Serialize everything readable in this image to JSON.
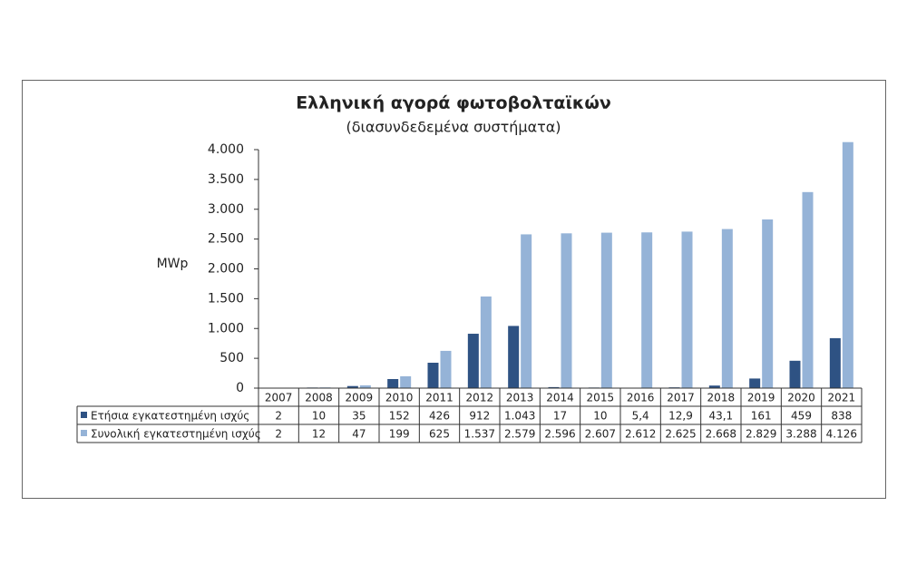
{
  "chart_data": {
    "type": "bar",
    "title": "Ελληνική αγορά φωτοβολταϊκών",
    "subtitle": "(διασυνδεδεμένα συστήματα)",
    "y_label": "MWp",
    "categories": [
      "2007",
      "2008",
      "2009",
      "2010",
      "2011",
      "2012",
      "2013",
      "2014",
      "2015",
      "2016",
      "2017",
      "2018",
      "2019",
      "2020",
      "2021"
    ],
    "series": [
      {
        "name": "Ετήσια εγκατεστημένη ισχύς",
        "color": "#2e5283",
        "values": [
          2,
          10,
          35,
          152,
          426,
          912,
          1043,
          17,
          10,
          5.4,
          12.9,
          43.1,
          161,
          459,
          838
        ],
        "value_labels": [
          "2",
          "10",
          "35",
          "152",
          "426",
          "912",
          "1.043",
          "17",
          "10",
          "5,4",
          "12,9",
          "43,1",
          "161",
          "459",
          "838"
        ]
      },
      {
        "name": "Συνολική εγκατεστημένη ισχύς",
        "color": "#95b3d7",
        "values": [
          2,
          12,
          47,
          199,
          625,
          1537,
          2579,
          2596,
          2607,
          2612,
          2625,
          2668,
          2829,
          3288,
          4126
        ],
        "value_labels": [
          "2",
          "12",
          "47",
          "199",
          "625",
          "1.537",
          "2.579",
          "2.596",
          "2.607",
          "2.612",
          "2.625",
          "2.668",
          "2.829",
          "3.288",
          "4.126"
        ]
      }
    ],
    "ylim": [
      0,
      4000
    ],
    "yticks": [
      0,
      500,
      {
        "value": 1000,
        "label": "1.000"
      },
      {
        "value": 1500,
        "label": "1.500"
      },
      {
        "value": 2000,
        "label": "2.000"
      },
      {
        "value": 2500,
        "label": "2.500"
      },
      {
        "value": 3000,
        "label": "3.000"
      },
      {
        "value": 3500,
        "label": "3.500"
      },
      {
        "value": 4000,
        "label": "4.000"
      }
    ]
  }
}
